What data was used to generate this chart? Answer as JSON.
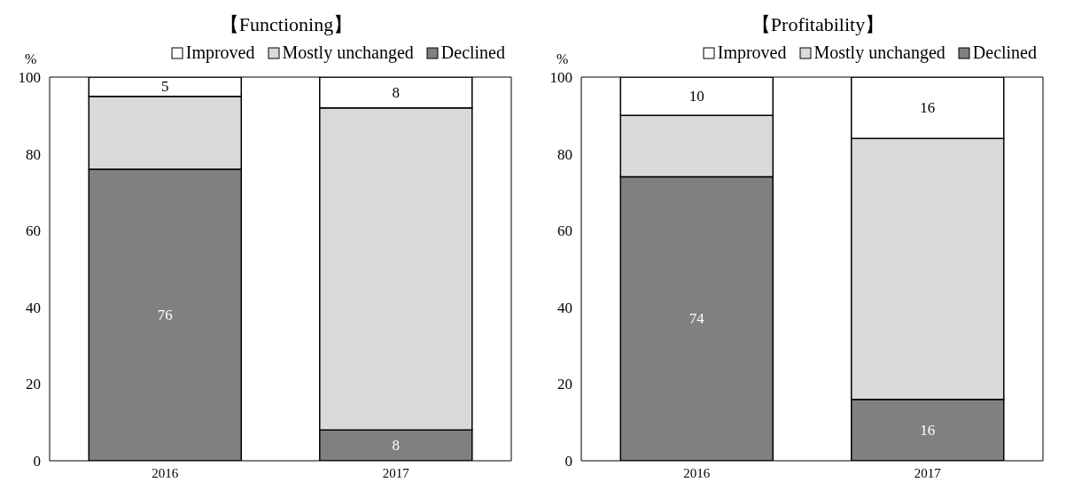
{
  "chart_data": [
    {
      "type": "bar",
      "title": "【Functioning】",
      "ylabel": "%",
      "categories": [
        "2016",
        "2017"
      ],
      "stacked": true,
      "ylim": [
        0,
        100
      ],
      "yticks": [
        0,
        20,
        40,
        60,
        80,
        100
      ],
      "legend": "top right",
      "series": [
        {
          "name": "Declined",
          "color": "#808080",
          "values": [
            76,
            8
          ],
          "value_labels": [
            "76",
            "8"
          ]
        },
        {
          "name": "Mostly unchanged",
          "color": "#d9d9d9",
          "values": [
            19,
            84
          ],
          "value_labels": [
            null,
            null
          ]
        },
        {
          "name": "Improved",
          "color": "#ffffff",
          "values": [
            5,
            8
          ],
          "value_labels": [
            "5",
            "8"
          ]
        }
      ]
    },
    {
      "type": "bar",
      "title": "【Profitability】",
      "ylabel": "%",
      "categories": [
        "2016",
        "2017"
      ],
      "stacked": true,
      "ylim": [
        0,
        100
      ],
      "yticks": [
        0,
        20,
        40,
        60,
        80,
        100
      ],
      "legend": "top right",
      "series": [
        {
          "name": "Declined",
          "color": "#808080",
          "values": [
            74,
            16
          ],
          "value_labels": [
            "74",
            "16"
          ]
        },
        {
          "name": "Mostly unchanged",
          "color": "#d9d9d9",
          "values": [
            16,
            68
          ],
          "value_labels": [
            null,
            null
          ]
        },
        {
          "name": "Improved",
          "color": "#ffffff",
          "values": [
            10,
            16
          ],
          "value_labels": [
            "10",
            "16"
          ]
        }
      ]
    }
  ]
}
